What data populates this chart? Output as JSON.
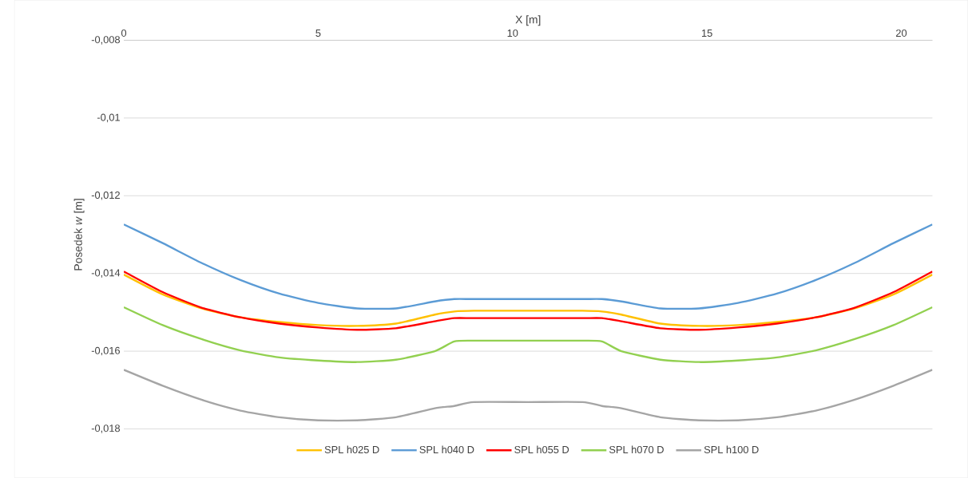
{
  "chart_data": {
    "type": "line",
    "xlabel": "X [m]",
    "ylabel": "Posedek *w* [m]",
    "x": [
      0,
      1,
      2,
      3,
      4,
      5,
      6,
      7,
      8,
      8.5,
      9,
      10.4,
      11.8,
      12.3,
      12.8,
      13.8,
      14.8,
      15.8,
      16.8,
      17.8,
      18.8,
      19.8,
      20.8
    ],
    "series": [
      {
        "name": "SPL h025 D",
        "color": "#ffc000",
        "values": [
          -0.01403,
          -0.01454,
          -0.0149,
          -0.01513,
          -0.01525,
          -0.01533,
          -0.01535,
          -0.01529,
          -0.01506,
          -0.01498,
          -0.01496,
          -0.01496,
          -0.01496,
          -0.01498,
          -0.01506,
          -0.01529,
          -0.01535,
          -0.01533,
          -0.01525,
          -0.01513,
          -0.0149,
          -0.01454,
          -0.01403
        ]
      },
      {
        "name": "SPL h040 D",
        "color": "#5b9bd5",
        "values": [
          -0.01274,
          -0.01322,
          -0.01373,
          -0.01417,
          -0.01452,
          -0.01476,
          -0.0149,
          -0.0149,
          -0.01472,
          -0.01466,
          -0.01466,
          -0.01466,
          -0.01466,
          -0.01466,
          -0.01472,
          -0.0149,
          -0.0149,
          -0.01476,
          -0.01452,
          -0.01417,
          -0.01373,
          -0.01322,
          -0.01274
        ]
      },
      {
        "name": "SPL h055 D",
        "color": "#ff0000",
        "values": [
          -0.01395,
          -0.01448,
          -0.01488,
          -0.01513,
          -0.01529,
          -0.01539,
          -0.01545,
          -0.01541,
          -0.01523,
          -0.01515,
          -0.01515,
          -0.01515,
          -0.01515,
          -0.01515,
          -0.01523,
          -0.01541,
          -0.01545,
          -0.01539,
          -0.01529,
          -0.01513,
          -0.01488,
          -0.01448,
          -0.01395
        ]
      },
      {
        "name": "SPL h070 D",
        "color": "#92d050",
        "values": [
          -0.01487,
          -0.01533,
          -0.01569,
          -0.01598,
          -0.01616,
          -0.01624,
          -0.01628,
          -0.01622,
          -0.016,
          -0.01575,
          -0.01573,
          -0.01573,
          -0.01573,
          -0.01575,
          -0.016,
          -0.01622,
          -0.01628,
          -0.01624,
          -0.01616,
          -0.01598,
          -0.01569,
          -0.01533,
          -0.01487
        ]
      },
      {
        "name": "SPL h100 D",
        "color": "#a5a5a5",
        "values": [
          -0.01648,
          -0.01689,
          -0.01725,
          -0.01753,
          -0.0177,
          -0.01778,
          -0.01778,
          -0.0177,
          -0.01747,
          -0.01741,
          -0.01731,
          -0.01731,
          -0.01731,
          -0.01741,
          -0.01747,
          -0.0177,
          -0.01778,
          -0.01778,
          -0.0177,
          -0.01753,
          -0.01725,
          -0.01689,
          -0.01648
        ]
      }
    ],
    "xlim": [
      0,
      20.8
    ],
    "ylim": [
      -0.018,
      -0.008
    ],
    "xticks": [
      0,
      5,
      10,
      15,
      20
    ],
    "yticks": [
      {
        "value": -0.018,
        "label": "-0,018"
      },
      {
        "value": -0.016,
        "label": "-0,016"
      },
      {
        "value": -0.014,
        "label": "-0,014"
      },
      {
        "value": -0.012,
        "label": "-0,012"
      },
      {
        "value": -0.01,
        "label": "-0,01"
      },
      {
        "value": -0.008,
        "label": "-0,008"
      }
    ],
    "grid": "y",
    "legend": "bottom",
    "marker": "none",
    "line_style": "solid"
  }
}
